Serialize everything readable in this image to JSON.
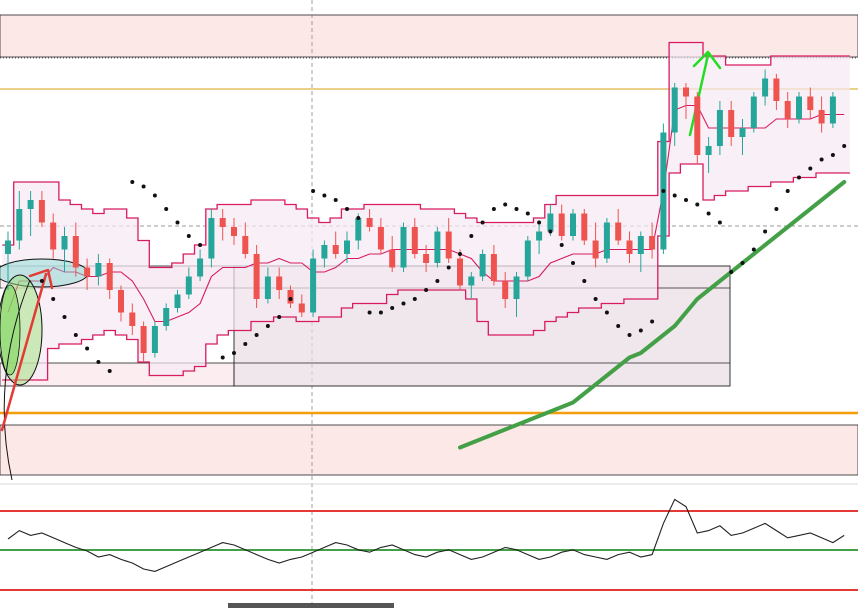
{
  "colors": {
    "up": "#26a69a",
    "down": "#ef5350",
    "channel": "#d81b60",
    "channel_fill": "#f6eaf3",
    "sar": "#111111",
    "ma": "#43a047",
    "support_orange": "#f59e0b",
    "resistance_zone": "#fde8e8",
    "rsi_line": "#222222",
    "rsi_upper": "#e53935",
    "rsi_lower": "#43a047",
    "arrow_red": "#e53935",
    "arrow_green": "#22dd22",
    "gold_line": "#d4a017"
  },
  "chart_data": {
    "type": "candlestick",
    "ylim": [
      0,
      100
    ],
    "grid": false,
    "candles": [
      {
        "o": 48,
        "h": 53,
        "l": 40,
        "c": 51
      },
      {
        "o": 51,
        "h": 62,
        "l": 49,
        "c": 58
      },
      {
        "o": 58,
        "h": 62,
        "l": 52,
        "c": 60
      },
      {
        "o": 60,
        "h": 62,
        "l": 54,
        "c": 55
      },
      {
        "o": 55,
        "h": 57,
        "l": 47,
        "c": 49
      },
      {
        "o": 49,
        "h": 54,
        "l": 44,
        "c": 52
      },
      {
        "o": 52,
        "h": 55,
        "l": 43,
        "c": 45
      },
      {
        "o": 45,
        "h": 47,
        "l": 40,
        "c": 43
      },
      {
        "o": 43,
        "h": 48,
        "l": 41,
        "c": 46
      },
      {
        "o": 46,
        "h": 47,
        "l": 38,
        "c": 40
      },
      {
        "o": 40,
        "h": 41,
        "l": 33,
        "c": 35
      },
      {
        "o": 35,
        "h": 37,
        "l": 30,
        "c": 32
      },
      {
        "o": 32,
        "h": 33,
        "l": 24,
        "c": 26
      },
      {
        "o": 26,
        "h": 33,
        "l": 25,
        "c": 32
      },
      {
        "o": 32,
        "h": 37,
        "l": 31,
        "c": 36
      },
      {
        "o": 36,
        "h": 40,
        "l": 35,
        "c": 39
      },
      {
        "o": 39,
        "h": 45,
        "l": 38,
        "c": 43
      },
      {
        "o": 43,
        "h": 49,
        "l": 42,
        "c": 47
      },
      {
        "o": 47,
        "h": 58,
        "l": 45,
        "c": 56
      },
      {
        "o": 56,
        "h": 58,
        "l": 51,
        "c": 54
      },
      {
        "o": 54,
        "h": 56,
        "l": 50,
        "c": 52
      },
      {
        "o": 52,
        "h": 55,
        "l": 47,
        "c": 48
      },
      {
        "o": 48,
        "h": 50,
        "l": 36,
        "c": 38
      },
      {
        "o": 38,
        "h": 45,
        "l": 37,
        "c": 43
      },
      {
        "o": 43,
        "h": 45,
        "l": 38,
        "c": 40
      },
      {
        "o": 40,
        "h": 41,
        "l": 36,
        "c": 37
      },
      {
        "o": 37,
        "h": 39,
        "l": 34,
        "c": 35
      },
      {
        "o": 35,
        "h": 49,
        "l": 34,
        "c": 47
      },
      {
        "o": 47,
        "h": 51,
        "l": 45,
        "c": 50
      },
      {
        "o": 50,
        "h": 53,
        "l": 47,
        "c": 48
      },
      {
        "o": 48,
        "h": 53,
        "l": 46,
        "c": 51
      },
      {
        "o": 51,
        "h": 57,
        "l": 49,
        "c": 56
      },
      {
        "o": 56,
        "h": 58,
        "l": 53,
        "c": 54
      },
      {
        "o": 54,
        "h": 56,
        "l": 48,
        "c": 49
      },
      {
        "o": 49,
        "h": 52,
        "l": 44,
        "c": 45
      },
      {
        "o": 45,
        "h": 55,
        "l": 44,
        "c": 54
      },
      {
        "o": 54,
        "h": 56,
        "l": 47,
        "c": 48
      },
      {
        "o": 48,
        "h": 50,
        "l": 44,
        "c": 46
      },
      {
        "o": 46,
        "h": 54,
        "l": 45,
        "c": 53
      },
      {
        "o": 53,
        "h": 56,
        "l": 46,
        "c": 47
      },
      {
        "o": 47,
        "h": 49,
        "l": 40,
        "c": 41
      },
      {
        "o": 41,
        "h": 44,
        "l": 38,
        "c": 43
      },
      {
        "o": 43,
        "h": 49,
        "l": 42,
        "c": 48
      },
      {
        "o": 48,
        "h": 50,
        "l": 41,
        "c": 42
      },
      {
        "o": 42,
        "h": 44,
        "l": 36,
        "c": 38
      },
      {
        "o": 38,
        "h": 44,
        "l": 34,
        "c": 43
      },
      {
        "o": 43,
        "h": 52,
        "l": 42,
        "c": 51
      },
      {
        "o": 51,
        "h": 55,
        "l": 48,
        "c": 53
      },
      {
        "o": 53,
        "h": 59,
        "l": 52,
        "c": 57
      },
      {
        "o": 57,
        "h": 59,
        "l": 51,
        "c": 52
      },
      {
        "o": 52,
        "h": 58,
        "l": 51,
        "c": 57
      },
      {
        "o": 57,
        "h": 58,
        "l": 50,
        "c": 51
      },
      {
        "o": 51,
        "h": 55,
        "l": 45,
        "c": 47
      },
      {
        "o": 47,
        "h": 56,
        "l": 46,
        "c": 55
      },
      {
        "o": 55,
        "h": 58,
        "l": 50,
        "c": 51
      },
      {
        "o": 51,
        "h": 53,
        "l": 46,
        "c": 48
      },
      {
        "o": 48,
        "h": 53,
        "l": 44,
        "c": 52
      },
      {
        "o": 52,
        "h": 55,
        "l": 47,
        "c": 49
      },
      {
        "o": 49,
        "h": 77,
        "l": 48,
        "c": 75
      },
      {
        "o": 75,
        "h": 86,
        "l": 72,
        "c": 85
      },
      {
        "o": 85,
        "h": 86,
        "l": 78,
        "c": 83
      },
      {
        "o": 83,
        "h": 84,
        "l": 68,
        "c": 70
      },
      {
        "o": 70,
        "h": 74,
        "l": 66,
        "c": 72
      },
      {
        "o": 72,
        "h": 82,
        "l": 70,
        "c": 80
      },
      {
        "o": 80,
        "h": 82,
        "l": 72,
        "c": 74
      },
      {
        "o": 74,
        "h": 78,
        "l": 70,
        "c": 76
      },
      {
        "o": 76,
        "h": 84,
        "l": 75,
        "c": 83
      },
      {
        "o": 83,
        "h": 89,
        "l": 81,
        "c": 87
      },
      {
        "o": 87,
        "h": 88,
        "l": 80,
        "c": 82
      },
      {
        "o": 82,
        "h": 84,
        "l": 76,
        "c": 78
      },
      {
        "o": 78,
        "h": 84,
        "l": 77,
        "c": 83
      },
      {
        "o": 83,
        "h": 85,
        "l": 78,
        "c": 80
      },
      {
        "o": 80,
        "h": 83,
        "l": 75,
        "c": 77
      },
      {
        "o": 77,
        "h": 84,
        "l": 76,
        "c": 83
      }
    ],
    "channel": {
      "upper": [
        50,
        64,
        64,
        64,
        64,
        60,
        59,
        58,
        57,
        58,
        58,
        56,
        51,
        45,
        45,
        46,
        48,
        50,
        58,
        59,
        59,
        59,
        60,
        60,
        60,
        59,
        58,
        56,
        55,
        56,
        58,
        58,
        59,
        59,
        59,
        59,
        59,
        58,
        58,
        58,
        57,
        56,
        55,
        55,
        55,
        55,
        55,
        56,
        59,
        61,
        61,
        61,
        61,
        61,
        61,
        61,
        61,
        61,
        73,
        95,
        95,
        95,
        92,
        92,
        90,
        90,
        90,
        90,
        92,
        92,
        92,
        92,
        92,
        92,
        92
      ],
      "lower": [
        20,
        20,
        20,
        20,
        27,
        28,
        28,
        29,
        30,
        31,
        30,
        29,
        24,
        21,
        21,
        21,
        22,
        23,
        28,
        30,
        31,
        31,
        33,
        33,
        34,
        34,
        33,
        33,
        34,
        34,
        36,
        37,
        37,
        37,
        39,
        40,
        40,
        40,
        40,
        40,
        40,
        38,
        33,
        30,
        30,
        30,
        30,
        31,
        33,
        34,
        35,
        36,
        36,
        37,
        37,
        38,
        38,
        38,
        52,
        66,
        68,
        68,
        60,
        61,
        62,
        62,
        63,
        63,
        64,
        64,
        65,
        65,
        66,
        66,
        66
      ],
      "mid": [
        35,
        42,
        42,
        42,
        45,
        44,
        44,
        43,
        43,
        44,
        44,
        42,
        38,
        33,
        33,
        34,
        35,
        37,
        43,
        45,
        45,
        45,
        46,
        46,
        47,
        46,
        46,
        44,
        44,
        45,
        47,
        47,
        48,
        48,
        49,
        49,
        49,
        49,
        49,
        49,
        48,
        47,
        44,
        42,
        42,
        42,
        42,
        43,
        46,
        47,
        48,
        48,
        48,
        49,
        49,
        49,
        49,
        49,
        62,
        80,
        81,
        81,
        76,
        76,
        76,
        76,
        76,
        76,
        78,
        78,
        78,
        78,
        79,
        79,
        79
      ]
    },
    "sar": [
      {
        "i": 3,
        "v": 42
      },
      {
        "i": 4,
        "v": 38
      },
      {
        "i": 5,
        "v": 34
      },
      {
        "i": 6,
        "v": 30
      },
      {
        "i": 7,
        "v": 27
      },
      {
        "i": 8,
        "v": 24
      },
      {
        "i": 9,
        "v": 22
      },
      {
        "i": 11,
        "v": 64
      },
      {
        "i": 12,
        "v": 63
      },
      {
        "i": 13,
        "v": 61
      },
      {
        "i": 14,
        "v": 58
      },
      {
        "i": 15,
        "v": 55
      },
      {
        "i": 16,
        "v": 52
      },
      {
        "i": 17,
        "v": 50
      },
      {
        "i": 19,
        "v": 25
      },
      {
        "i": 20,
        "v": 26
      },
      {
        "i": 21,
        "v": 28
      },
      {
        "i": 22,
        "v": 30
      },
      {
        "i": 23,
        "v": 32
      },
      {
        "i": 24,
        "v": 34
      },
      {
        "i": 25,
        "v": 38
      },
      {
        "i": 27,
        "v": 62
      },
      {
        "i": 28,
        "v": 61
      },
      {
        "i": 29,
        "v": 60
      },
      {
        "i": 30,
        "v": 58
      },
      {
        "i": 31,
        "v": 56
      },
      {
        "i": 32,
        "v": 35
      },
      {
        "i": 33,
        "v": 35
      },
      {
        "i": 34,
        "v": 36
      },
      {
        "i": 35,
        "v": 37
      },
      {
        "i": 36,
        "v": 38
      },
      {
        "i": 37,
        "v": 40
      },
      {
        "i": 38,
        "v": 42
      },
      {
        "i": 39,
        "v": 45
      },
      {
        "i": 40,
        "v": 48
      },
      {
        "i": 41,
        "v": 52
      },
      {
        "i": 42,
        "v": 55
      },
      {
        "i": 43,
        "v": 58
      },
      {
        "i": 44,
        "v": 59
      },
      {
        "i": 45,
        "v": 58
      },
      {
        "i": 46,
        "v": 57
      },
      {
        "i": 47,
        "v": 55
      },
      {
        "i": 48,
        "v": 53
      },
      {
        "i": 49,
        "v": 50
      },
      {
        "i": 50,
        "v": 46
      },
      {
        "i": 51,
        "v": 42
      },
      {
        "i": 52,
        "v": 38
      },
      {
        "i": 53,
        "v": 35
      },
      {
        "i": 54,
        "v": 32
      },
      {
        "i": 55,
        "v": 30
      },
      {
        "i": 56,
        "v": 31
      },
      {
        "i": 57,
        "v": 33
      },
      {
        "i": 58,
        "v": 62
      },
      {
        "i": 59,
        "v": 61
      },
      {
        "i": 60,
        "v": 60
      },
      {
        "i": 61,
        "v": 59
      },
      {
        "i": 62,
        "v": 57
      },
      {
        "i": 63,
        "v": 55
      },
      {
        "i": 64,
        "v": 44
      },
      {
        "i": 65,
        "v": 46
      },
      {
        "i": 66,
        "v": 49
      },
      {
        "i": 67,
        "v": 53
      },
      {
        "i": 68,
        "v": 58
      },
      {
        "i": 69,
        "v": 62
      },
      {
        "i": 70,
        "v": 65
      },
      {
        "i": 71,
        "v": 67
      },
      {
        "i": 72,
        "v": 69
      },
      {
        "i": 73,
        "v": 70
      },
      {
        "i": 74,
        "v": 72
      }
    ],
    "moving_average": {
      "start_index": 40,
      "values": [
        5,
        6,
        7,
        8,
        9,
        10,
        11,
        12,
        13,
        14,
        15,
        17,
        19,
        21,
        23,
        25,
        26,
        28,
        30,
        32,
        35,
        38,
        40,
        42,
        44,
        46,
        48,
        50,
        52,
        54,
        56,
        58,
        60,
        62,
        64
      ]
    },
    "rsi": {
      "ylim": [
        0,
        100
      ],
      "upper_level": 70,
      "lower_level": 30,
      "values": [
        55,
        62,
        58,
        60,
        56,
        52,
        48,
        45,
        40,
        42,
        38,
        35,
        30,
        28,
        32,
        36,
        40,
        44,
        48,
        52,
        50,
        46,
        42,
        38,
        35,
        38,
        40,
        44,
        48,
        52,
        50,
        46,
        44,
        48,
        50,
        46,
        42,
        40,
        44,
        46,
        42,
        38,
        40,
        44,
        48,
        46,
        42,
        38,
        40,
        44,
        46,
        42,
        40,
        38,
        42,
        44,
        40,
        42,
        68,
        88,
        82,
        60,
        62,
        66,
        58,
        60,
        64,
        68,
        62,
        56,
        58,
        60,
        56,
        52,
        58
      ]
    }
  }
}
